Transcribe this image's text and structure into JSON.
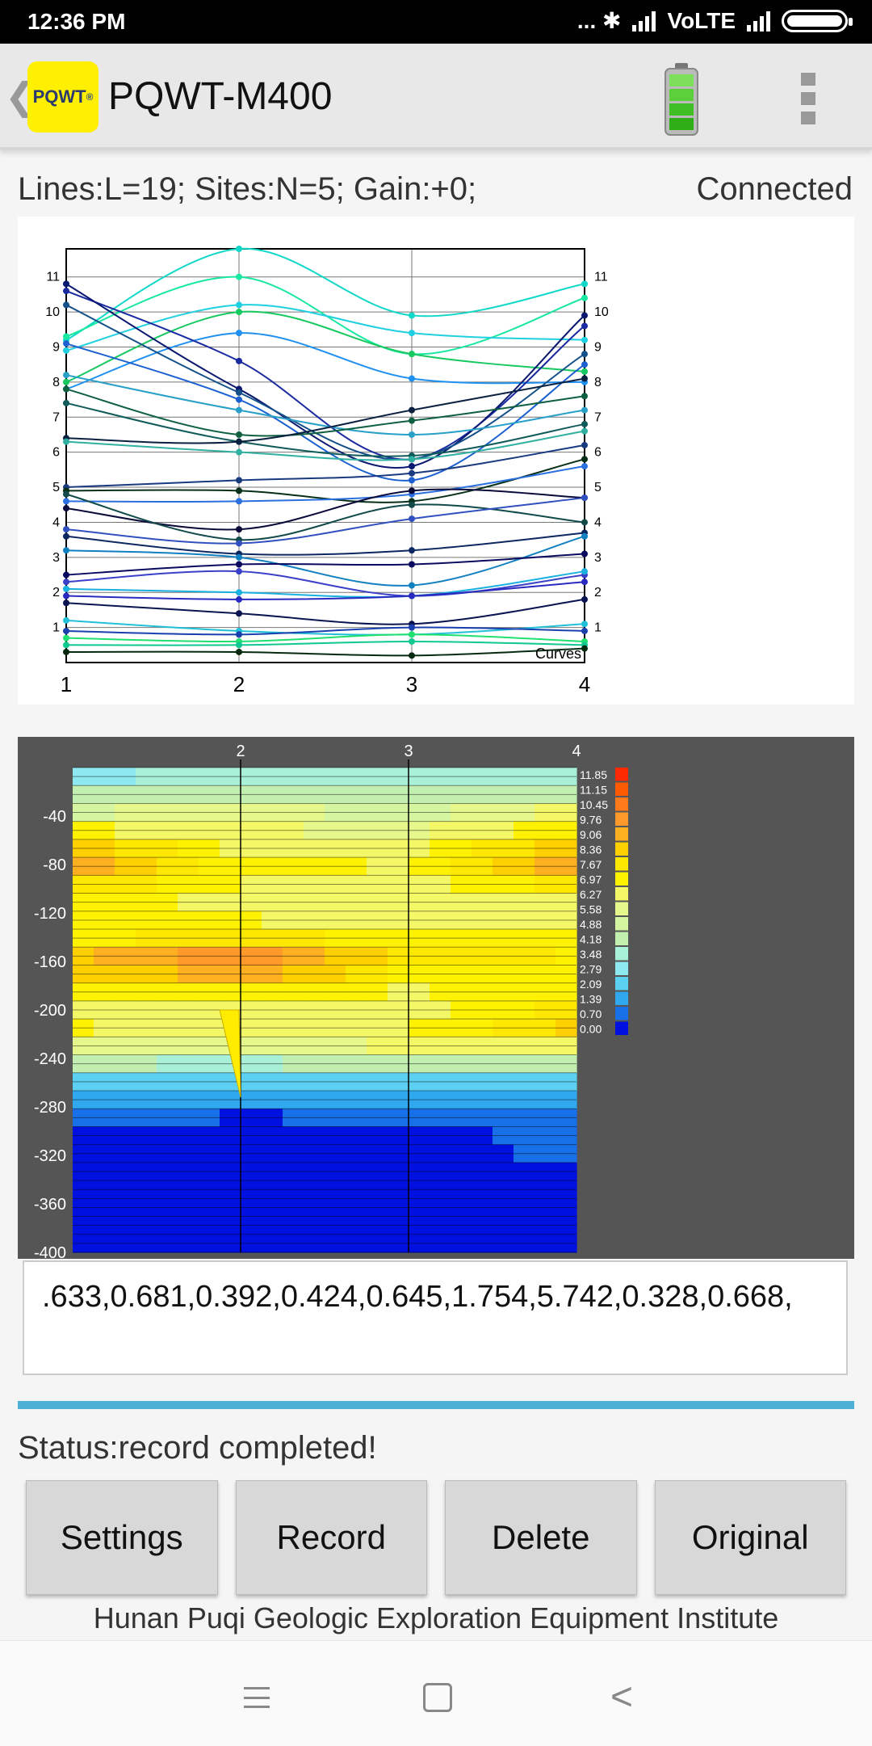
{
  "statusbar": {
    "time": "12:36 PM",
    "icons": "... ✱",
    "network": "VoLTE"
  },
  "appbar": {
    "logo_text": "PQWT",
    "logo_mark": "®",
    "title": "PQWT-M400"
  },
  "info": {
    "line": "Lines:L=19;  Sites:N=5;  Gain:+0;",
    "connection": "Connected"
  },
  "chart_data": [
    {
      "type": "line",
      "title": "",
      "x": [
        1,
        2,
        3,
        4
      ],
      "x_tick_labels": [
        "1",
        "2",
        "3",
        "4"
      ],
      "y_tick_labels": [
        "1",
        "2",
        "3",
        "4",
        "5",
        "6",
        "7",
        "8",
        "9",
        "10",
        "11"
      ],
      "ylim": [
        0,
        11.8
      ],
      "legend_text": "Curves",
      "grid": true,
      "series": [
        {
          "values": [
            9.2,
            11.8,
            9.9,
            10.8
          ]
        },
        {
          "values": [
            9.3,
            11.0,
            8.8,
            10.4
          ]
        },
        {
          "values": [
            8.9,
            10.2,
            9.4,
            9.2
          ]
        },
        {
          "values": [
            8.0,
            10.0,
            8.8,
            8.3
          ]
        },
        {
          "values": [
            7.8,
            9.4,
            8.1,
            8.0
          ]
        },
        {
          "values": [
            10.6,
            8.6,
            5.8,
            9.6
          ]
        },
        {
          "values": [
            10.8,
            7.8,
            5.6,
            9.9
          ]
        },
        {
          "values": [
            10.2,
            7.7,
            5.8,
            8.8
          ]
        },
        {
          "values": [
            9.1,
            7.5,
            5.2,
            8.5
          ]
        },
        {
          "values": [
            8.2,
            7.2,
            6.5,
            7.2
          ]
        },
        {
          "values": [
            7.8,
            6.5,
            6.9,
            7.6
          ]
        },
        {
          "values": [
            7.4,
            6.3,
            5.9,
            6.8
          ]
        },
        {
          "values": [
            6.4,
            6.3,
            7.2,
            8.1
          ]
        },
        {
          "values": [
            6.3,
            6.0,
            5.8,
            6.6
          ]
        },
        {
          "values": [
            5.0,
            5.2,
            5.4,
            6.2
          ]
        },
        {
          "values": [
            4.9,
            4.9,
            4.6,
            5.8
          ]
        },
        {
          "values": [
            4.6,
            4.6,
            4.8,
            5.6
          ]
        },
        {
          "values": [
            4.4,
            3.8,
            4.9,
            4.7
          ]
        },
        {
          "values": [
            4.8,
            3.5,
            4.5,
            4.0
          ]
        },
        {
          "values": [
            3.8,
            3.4,
            4.1,
            4.7
          ]
        },
        {
          "values": [
            3.6,
            3.1,
            3.2,
            3.7
          ]
        },
        {
          "values": [
            3.2,
            3.0,
            2.2,
            3.6
          ]
        },
        {
          "values": [
            2.5,
            2.8,
            2.8,
            3.1
          ]
        },
        {
          "values": [
            2.3,
            2.6,
            1.9,
            2.5
          ]
        },
        {
          "values": [
            2.1,
            2.0,
            1.9,
            2.6
          ]
        },
        {
          "values": [
            1.9,
            1.8,
            1.9,
            2.3
          ]
        },
        {
          "values": [
            1.7,
            1.4,
            1.1,
            1.8
          ]
        },
        {
          "values": [
            1.2,
            0.9,
            0.8,
            1.1
          ]
        },
        {
          "values": [
            0.9,
            0.8,
            1.0,
            0.9
          ]
        },
        {
          "values": [
            0.7,
            0.6,
            0.8,
            0.6
          ]
        },
        {
          "values": [
            0.5,
            0.5,
            0.6,
            0.5
          ]
        },
        {
          "values": [
            0.3,
            0.3,
            0.2,
            0.4
          ]
        }
      ]
    },
    {
      "type": "heatmap",
      "x": [
        1,
        2,
        3,
        4
      ],
      "x_tick_labels": [
        "2",
        "3",
        "4"
      ],
      "y_tick_labels": [
        "-40",
        "-80",
        "-120",
        "-160",
        "-200",
        "-240",
        "-280",
        "-320",
        "-360",
        "-400"
      ],
      "ylim": [
        0,
        -400
      ],
      "scale_labels": [
        "11.85",
        "11.15",
        "10.45",
        "9.76",
        "9.06",
        "8.36",
        "7.67",
        "6.97",
        "6.27",
        "5.58",
        "4.88",
        "4.18",
        "3.48",
        "2.79",
        "2.09",
        "1.39",
        "0.70",
        "0.00"
      ],
      "scale_colors": [
        "#ff2a00",
        "#ff5a00",
        "#ff7a1a",
        "#ff9a2a",
        "#ffb020",
        "#ffd000",
        "#ffe800",
        "#fff200",
        "#f4f766",
        "#e6f88c",
        "#d6f5a0",
        "#c2efb0",
        "#a8f0d8",
        "#8ee8f0",
        "#5cd0f0",
        "#30a8f0",
        "#1870e8",
        "#0010e0"
      ],
      "rows": [
        [
          3.4,
          3.6,
          3.5,
          3.7
        ],
        [
          4.2,
          4.6,
          4.4,
          4.9
        ],
        [
          5.5,
          5.9,
          5.2,
          6.6
        ],
        [
          7.2,
          6.4,
          6.0,
          7.6
        ],
        [
          8.8,
          6.8,
          6.5,
          9.2
        ],
        [
          9.6,
          7.2,
          6.9,
          9.8
        ],
        [
          8.4,
          6.9,
          6.6,
          8.0
        ],
        [
          7.2,
          6.8,
          6.4,
          6.9
        ],
        [
          7.0,
          7.0,
          6.6,
          6.8
        ],
        [
          7.4,
          8.2,
          7.0,
          7.1
        ],
        [
          8.9,
          10.2,
          8.1,
          7.6
        ],
        [
          8.3,
          9.6,
          7.5,
          7.3
        ],
        [
          7.1,
          7.7,
          6.9,
          7.4
        ],
        [
          6.9,
          6.6,
          6.7,
          8.0
        ],
        [
          7.0,
          6.6,
          6.9,
          8.6
        ],
        [
          6.2,
          5.8,
          6.4,
          7.0
        ],
        [
          4.4,
          4.0,
          4.6,
          4.6
        ],
        [
          2.6,
          2.2,
          2.8,
          2.6
        ],
        [
          1.9,
          1.5,
          1.7,
          1.7
        ],
        [
          1.2,
          0.6,
          1.0,
          1.1
        ],
        [
          0.6,
          0.3,
          0.6,
          0.8
        ],
        [
          0.3,
          0.2,
          0.4,
          0.9
        ],
        [
          0.2,
          0.2,
          0.2,
          0.2
        ],
        [
          0.1,
          0.1,
          0.1,
          0.1
        ],
        [
          0.1,
          0.0,
          0.1,
          0.1
        ],
        [
          0.0,
          0.0,
          0.0,
          0.0
        ],
        [
          0.4,
          0.2,
          0.3,
          0.3
        ]
      ]
    }
  ],
  "data_text": ".633,0.681,0.392,0.424,0.645,1.754,5.742,0.328,0.668,",
  "progress": 1.0,
  "status": "Status:record completed!",
  "buttons": {
    "settings": "Settings",
    "record": "Record",
    "delete": "Delete",
    "original": "Original"
  },
  "footer": "Hunan Puqi Geologic Exploration Equipment Institute",
  "colors": {
    "accent": "#4fb0d6",
    "logo_bg": "#ffef00",
    "battery_green": "#5bd03a"
  }
}
